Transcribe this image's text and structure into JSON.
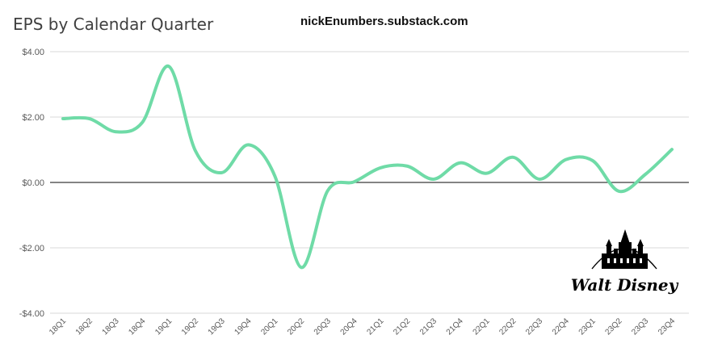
{
  "title": "EPS by Calendar Quarter",
  "watermark": "nickEnumbers.substack.com",
  "logo_text": "Walt Disney",
  "colors": {
    "line": "#6fdba7",
    "grid": "#d9d9d9",
    "zero_line": "#3a3a3a",
    "text": "#595959"
  },
  "chart_data": {
    "type": "line",
    "title": "EPS by Calendar Quarter",
    "xlabel": "",
    "ylabel": "",
    "ylim": [
      -4,
      4
    ],
    "y_ticks": [
      "$4.00",
      "$2.00",
      "$0.00",
      "-$2.00",
      "-$4.00"
    ],
    "y_tick_values": [
      4,
      2,
      0,
      -2,
      -4
    ],
    "grid": true,
    "categories": [
      "18Q1",
      "18Q2",
      "18Q3",
      "18Q4",
      "19Q1",
      "19Q2",
      "19Q3",
      "19Q4",
      "20Q1",
      "20Q2",
      "20Q3",
      "20Q4",
      "21Q1",
      "21Q2",
      "21Q3",
      "21Q4",
      "22Q1",
      "22Q2",
      "22Q3",
      "22Q4",
      "23Q1",
      "23Q2",
      "23Q3",
      "23Q4"
    ],
    "series": [
      {
        "values": [
          1.95,
          1.95,
          1.55,
          1.84,
          3.55,
          0.97,
          0.3,
          1.15,
          0.2,
          -2.6,
          -0.25,
          0.02,
          0.45,
          0.5,
          0.1,
          0.6,
          0.28,
          0.77,
          0.1,
          0.7,
          0.67,
          -0.27,
          0.25,
          1.01
        ]
      }
    ]
  }
}
